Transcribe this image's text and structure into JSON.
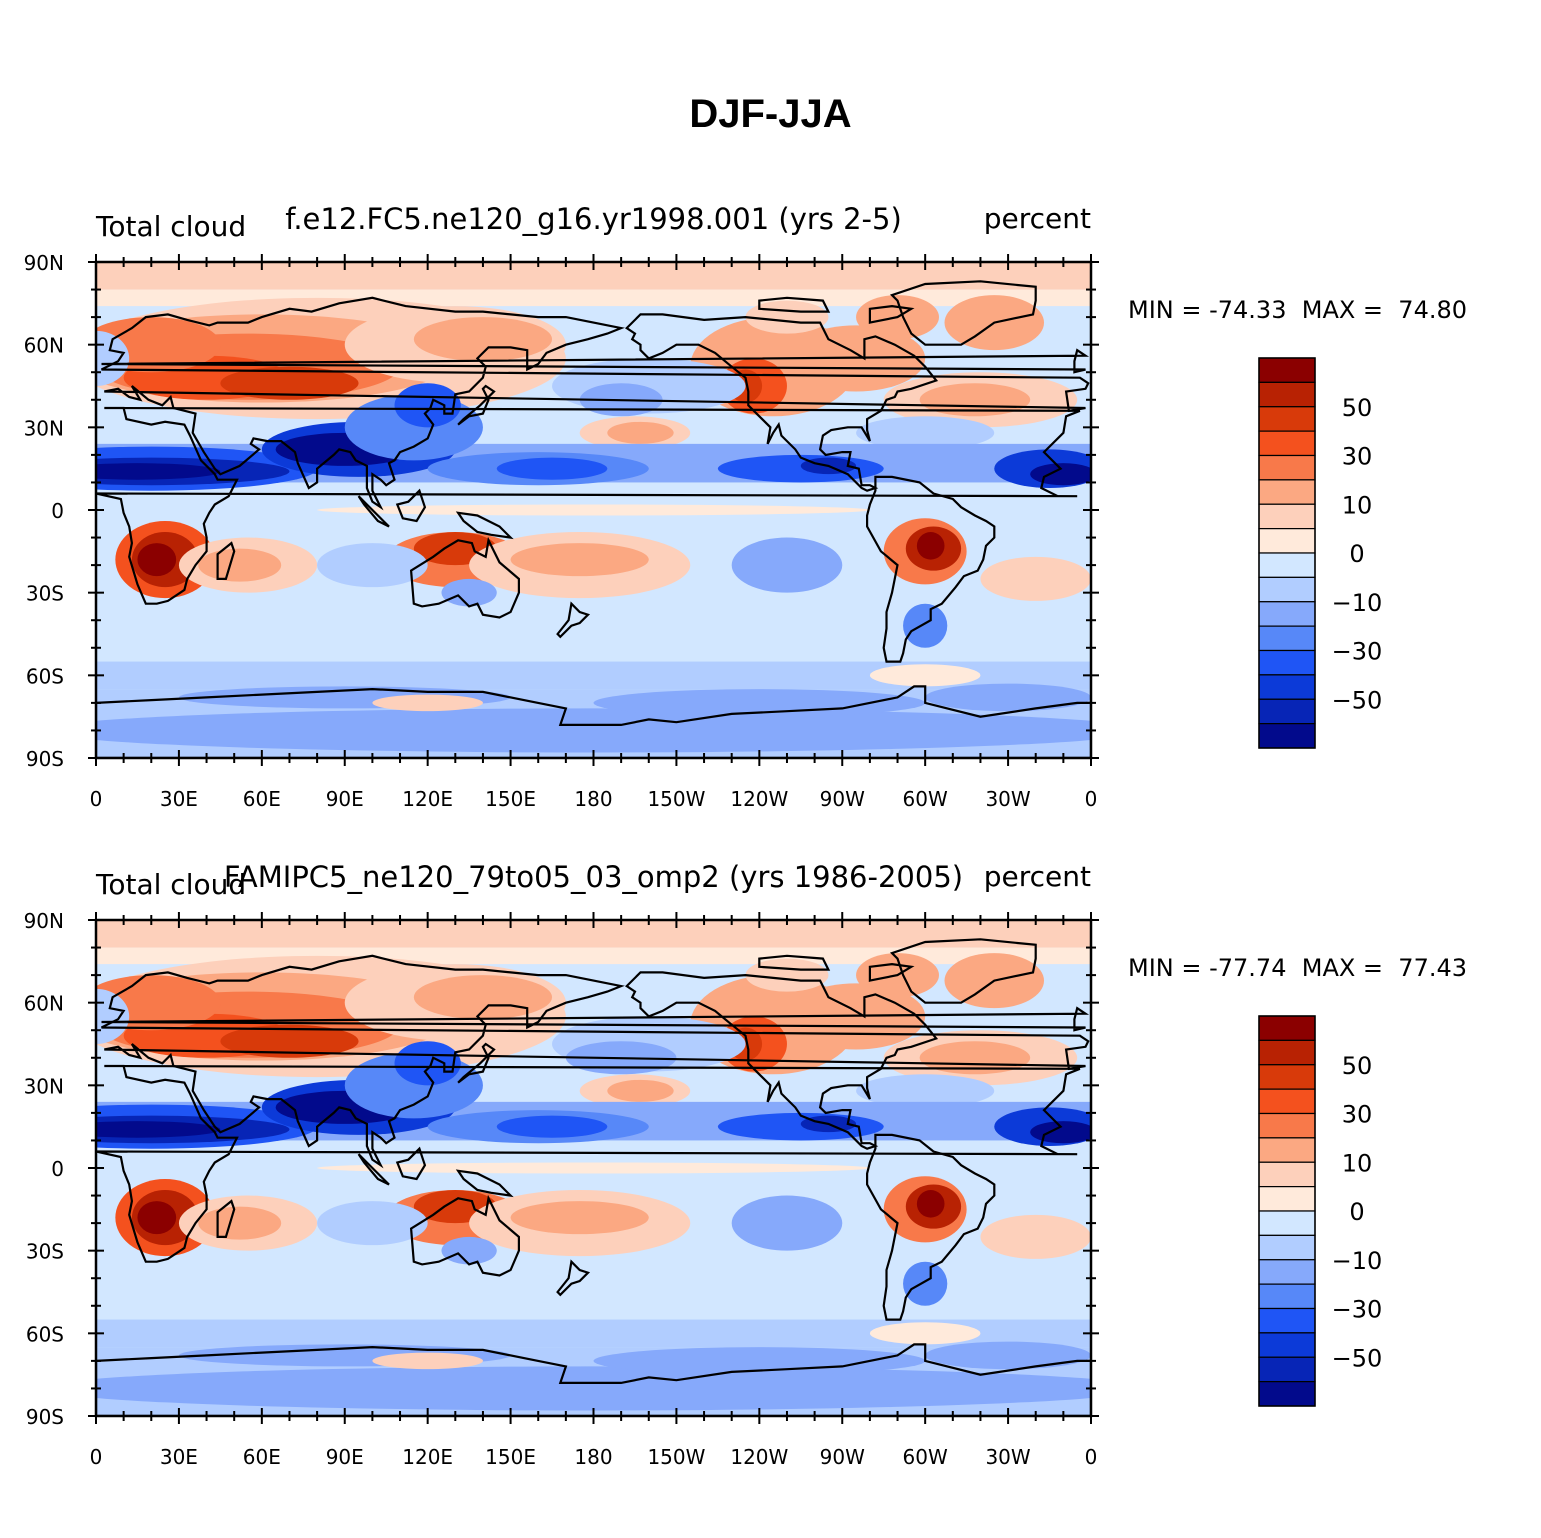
{
  "title": "DJF-JJA",
  "panels": [
    {
      "left_label": "Total cloud",
      "center_label": "f.e12.FC5.ne120_g16.yr1998.001 (yrs 2-5)",
      "right_label": "percent",
      "min_max": "MIN = -74.33  MAX =  74.80"
    },
    {
      "left_label": "Total cloud",
      "center_label": "FAMIPC5_ne120_79to05_03_omp2 (yrs 1986-2005)",
      "right_label": "percent",
      "min_max": "MIN = -77.74  MAX =  77.43"
    }
  ],
  "map": {
    "projection": "cylindrical-equidistant",
    "lat_ticks": [
      "90N",
      "60N",
      "30N",
      "0",
      "30S",
      "60S",
      "90S"
    ],
    "lon_ticks": [
      "0",
      "30E",
      "60E",
      "90E",
      "120E",
      "150E",
      "180",
      "150W",
      "120W",
      "90W",
      "60W",
      "30W",
      "0"
    ]
  },
  "colorbar": {
    "labels": [
      "50",
      "30",
      "10",
      "0",
      "-10",
      "-30",
      "-50"
    ],
    "colors": [
      "#8b0000",
      "#b82203",
      "#d83a0a",
      "#f4511e",
      "#f8794a",
      "#fba882",
      "#fdd0bb",
      "#ffeadb",
      "#d2e7ff",
      "#b1cdff",
      "#86a9fb",
      "#5788f8",
      "#1f55f5",
      "#0c3ad8",
      "#0725b6",
      "#020a8c"
    ]
  }
}
